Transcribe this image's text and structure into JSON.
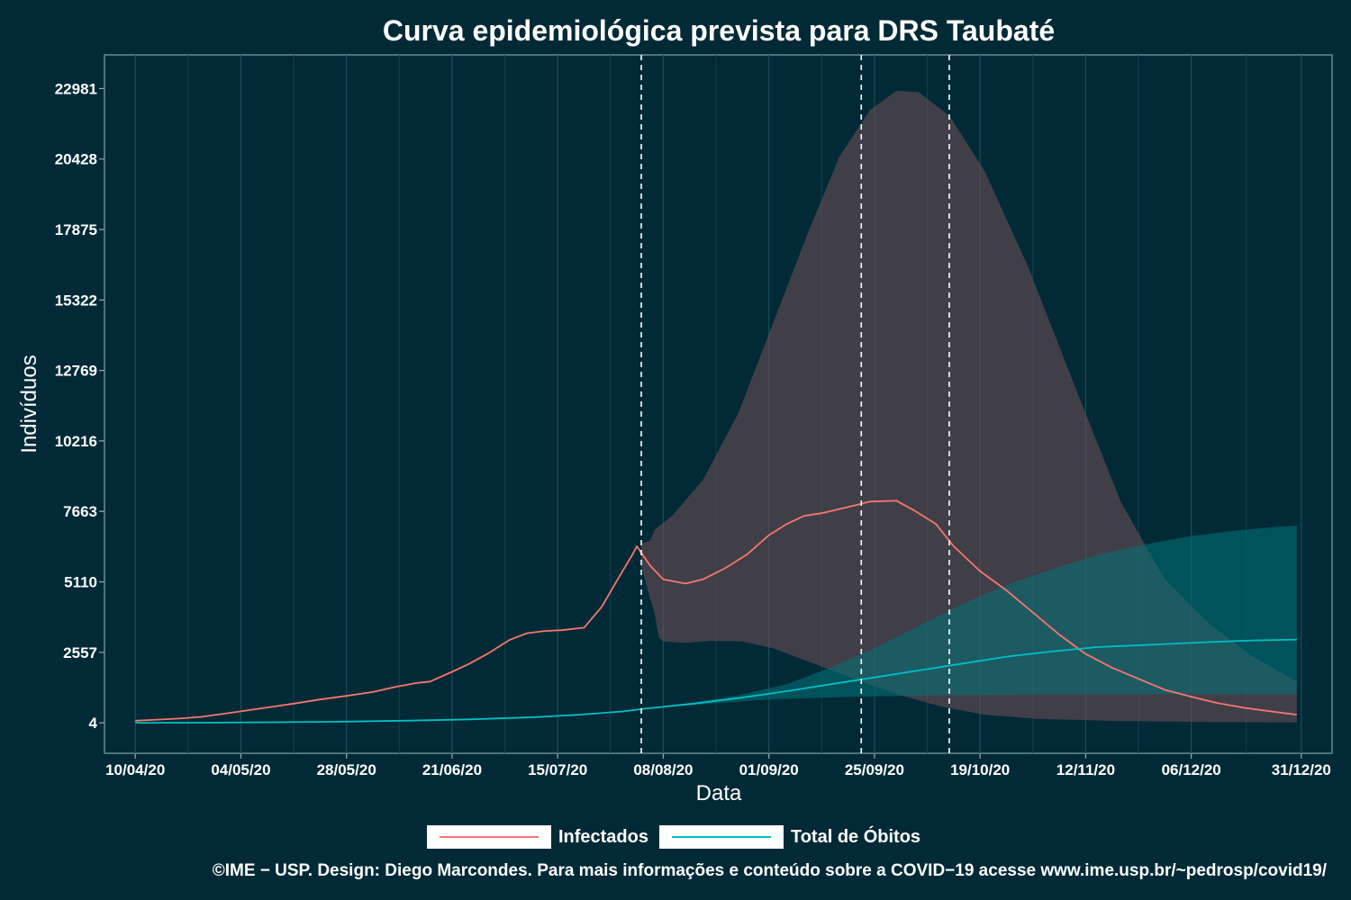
{
  "chart_data": {
    "type": "line",
    "title": "Curva epidemiológica prevista para DRS Taubaté",
    "xlabel": "Data",
    "ylabel": "Indivíduos",
    "x_ticks": [
      "10/04/20",
      "04/05/20",
      "28/05/20",
      "21/06/20",
      "15/07/20",
      "08/08/20",
      "01/09/20",
      "25/09/20",
      "19/10/20",
      "12/11/20",
      "06/12/20",
      "31/12/20"
    ],
    "y_ticks": [
      4,
      2557,
      5110,
      7663,
      10216,
      12769,
      15322,
      17875,
      20428,
      22981
    ],
    "xlim": [
      "2020-04-03",
      "2021-01-07"
    ],
    "ylim": [
      -1100,
      24200
    ],
    "vlines": [
      "2020-08-03",
      "2020-09-22",
      "2020-10-12"
    ],
    "grid": true,
    "legend_position": "bottom",
    "series": [
      {
        "name": "Infectados",
        "color": "#f8766d",
        "points": [
          [
            "2020-04-10",
            80
          ],
          [
            "2020-04-15",
            120
          ],
          [
            "2020-04-20",
            160
          ],
          [
            "2020-04-25",
            220
          ],
          [
            "2020-04-30",
            330
          ],
          [
            "2020-05-04",
            420
          ],
          [
            "2020-05-10",
            560
          ],
          [
            "2020-05-16",
            700
          ],
          [
            "2020-05-22",
            850
          ],
          [
            "2020-05-28",
            980
          ],
          [
            "2020-06-03",
            1120
          ],
          [
            "2020-06-08",
            1300
          ],
          [
            "2020-06-13",
            1450
          ],
          [
            "2020-06-16",
            1500
          ],
          [
            "2020-06-21",
            1850
          ],
          [
            "2020-06-25",
            2150
          ],
          [
            "2020-06-29",
            2500
          ],
          [
            "2020-07-04",
            3000
          ],
          [
            "2020-07-08",
            3250
          ],
          [
            "2020-07-12",
            3330
          ],
          [
            "2020-07-16",
            3360
          ],
          [
            "2020-07-21",
            3450
          ],
          [
            "2020-07-25",
            4200
          ],
          [
            "2020-07-29",
            5300
          ],
          [
            "2020-08-01",
            6100
          ],
          [
            "2020-08-02",
            6400
          ],
          [
            "2020-08-05",
            5700
          ],
          [
            "2020-08-08",
            5200
          ],
          [
            "2020-08-13",
            5050
          ],
          [
            "2020-08-17",
            5200
          ],
          [
            "2020-08-22",
            5600
          ],
          [
            "2020-08-27",
            6100
          ],
          [
            "2020-09-01",
            6800
          ],
          [
            "2020-09-05",
            7200
          ],
          [
            "2020-09-09",
            7500
          ],
          [
            "2020-09-13",
            7600
          ],
          [
            "2020-09-17",
            7750
          ],
          [
            "2020-09-21",
            7900
          ],
          [
            "2020-09-24",
            8020
          ],
          [
            "2020-09-30",
            8050
          ],
          [
            "2020-10-04",
            7700
          ],
          [
            "2020-10-09",
            7200
          ],
          [
            "2020-10-13",
            6400
          ],
          [
            "2020-10-19",
            5500
          ],
          [
            "2020-10-25",
            4800
          ],
          [
            "2020-10-31",
            4000
          ],
          [
            "2020-11-06",
            3200
          ],
          [
            "2020-11-12",
            2500
          ],
          [
            "2020-11-18",
            2000
          ],
          [
            "2020-11-24",
            1600
          ],
          [
            "2020-11-30",
            1200
          ],
          [
            "2020-12-06",
            950
          ],
          [
            "2020-12-12",
            720
          ],
          [
            "2020-12-18",
            550
          ],
          [
            "2020-12-24",
            420
          ],
          [
            "2020-12-30",
            300
          ]
        ]
      },
      {
        "name": "Total de Óbitos",
        "color": "#00bfc4",
        "points": [
          [
            "2020-04-10",
            4
          ],
          [
            "2020-04-25",
            10
          ],
          [
            "2020-05-10",
            25
          ],
          [
            "2020-05-25",
            40
          ],
          [
            "2020-06-10",
            80
          ],
          [
            "2020-06-25",
            130
          ],
          [
            "2020-07-10",
            210
          ],
          [
            "2020-07-20",
            300
          ],
          [
            "2020-07-30",
            420
          ],
          [
            "2020-08-03",
            500
          ],
          [
            "2020-08-15",
            700
          ],
          [
            "2020-08-25",
            900
          ],
          [
            "2020-09-05",
            1150
          ],
          [
            "2020-09-15",
            1400
          ],
          [
            "2020-09-25",
            1650
          ],
          [
            "2020-10-05",
            1900
          ],
          [
            "2020-10-15",
            2150
          ],
          [
            "2020-10-25",
            2400
          ],
          [
            "2020-11-05",
            2600
          ],
          [
            "2020-11-15",
            2750
          ],
          [
            "2020-11-25",
            2820
          ],
          [
            "2020-12-10",
            2930
          ],
          [
            "2020-12-20",
            2990
          ],
          [
            "2020-12-30",
            3020
          ]
        ]
      }
    ],
    "bands": [
      {
        "name": "Infectados",
        "color": "#6b4e55",
        "opacity": 0.6,
        "upper": [
          [
            "2020-08-03",
            6500
          ],
          [
            "2020-08-05",
            6600
          ],
          [
            "2020-08-06",
            7000
          ],
          [
            "2020-08-10",
            7500
          ],
          [
            "2020-08-17",
            8800
          ],
          [
            "2020-08-25",
            11200
          ],
          [
            "2020-09-02",
            14500
          ],
          [
            "2020-09-10",
            17800
          ],
          [
            "2020-09-17",
            20500
          ],
          [
            "2020-09-24",
            22200
          ],
          [
            "2020-09-30",
            22900
          ],
          [
            "2020-10-05",
            22850
          ],
          [
            "2020-10-12",
            22000
          ],
          [
            "2020-10-20",
            20000
          ],
          [
            "2020-10-30",
            16500
          ],
          [
            "2020-11-10",
            12000
          ],
          [
            "2020-11-20",
            8000
          ],
          [
            "2020-11-30",
            5200
          ],
          [
            "2020-12-10",
            3600
          ],
          [
            "2020-12-20",
            2400
          ],
          [
            "2020-12-30",
            1500
          ]
        ],
        "lower": [
          [
            "2020-12-30",
            20
          ],
          [
            "2020-12-10",
            30
          ],
          [
            "2020-11-20",
            70
          ],
          [
            "2020-11-01",
            150
          ],
          [
            "2020-10-20",
            300
          ],
          [
            "2020-10-10",
            600
          ],
          [
            "2020-10-01",
            1000
          ],
          [
            "2020-09-22",
            1500
          ],
          [
            "2020-09-12",
            2100
          ],
          [
            "2020-09-02",
            2700
          ],
          [
            "2020-08-26",
            2950
          ],
          [
            "2020-08-19",
            2980
          ],
          [
            "2020-08-13",
            2900
          ],
          [
            "2020-08-08",
            2950
          ],
          [
            "2020-08-07",
            3100
          ],
          [
            "2020-08-06",
            4000
          ],
          [
            "2020-08-05",
            4500
          ],
          [
            "2020-08-03",
            5700
          ]
        ]
      },
      {
        "name": "Total de Óbitos",
        "color": "#00727a",
        "opacity": 0.55,
        "upper": [
          [
            "2020-08-03",
            500
          ],
          [
            "2020-08-15",
            750
          ],
          [
            "2020-08-25",
            1000
          ],
          [
            "2020-09-05",
            1400
          ],
          [
            "2020-09-15",
            2000
          ],
          [
            "2020-09-25",
            2700
          ],
          [
            "2020-10-05",
            3500
          ],
          [
            "2020-10-15",
            4300
          ],
          [
            "2020-10-25",
            5000
          ],
          [
            "2020-11-05",
            5600
          ],
          [
            "2020-11-15",
            6100
          ],
          [
            "2020-11-25",
            6450
          ],
          [
            "2020-12-05",
            6750
          ],
          [
            "2020-12-15",
            6950
          ],
          [
            "2020-12-25",
            7100
          ],
          [
            "2020-12-30",
            7150
          ]
        ],
        "lower": [
          [
            "2020-12-30",
            1050
          ],
          [
            "2020-12-10",
            1050
          ],
          [
            "2020-11-20",
            1050
          ],
          [
            "2020-11-01",
            1030
          ],
          [
            "2020-10-10",
            1000
          ],
          [
            "2020-09-20",
            950
          ],
          [
            "2020-09-01",
            850
          ],
          [
            "2020-08-15",
            650
          ],
          [
            "2020-08-03",
            500
          ]
        ]
      }
    ],
    "caption": "©IME − USP. Design: Diego Marcondes. Para mais informações e conteúdo sobre a COVID−19 acesse www.ime.usp.br/~pedrosp/covid19/"
  }
}
